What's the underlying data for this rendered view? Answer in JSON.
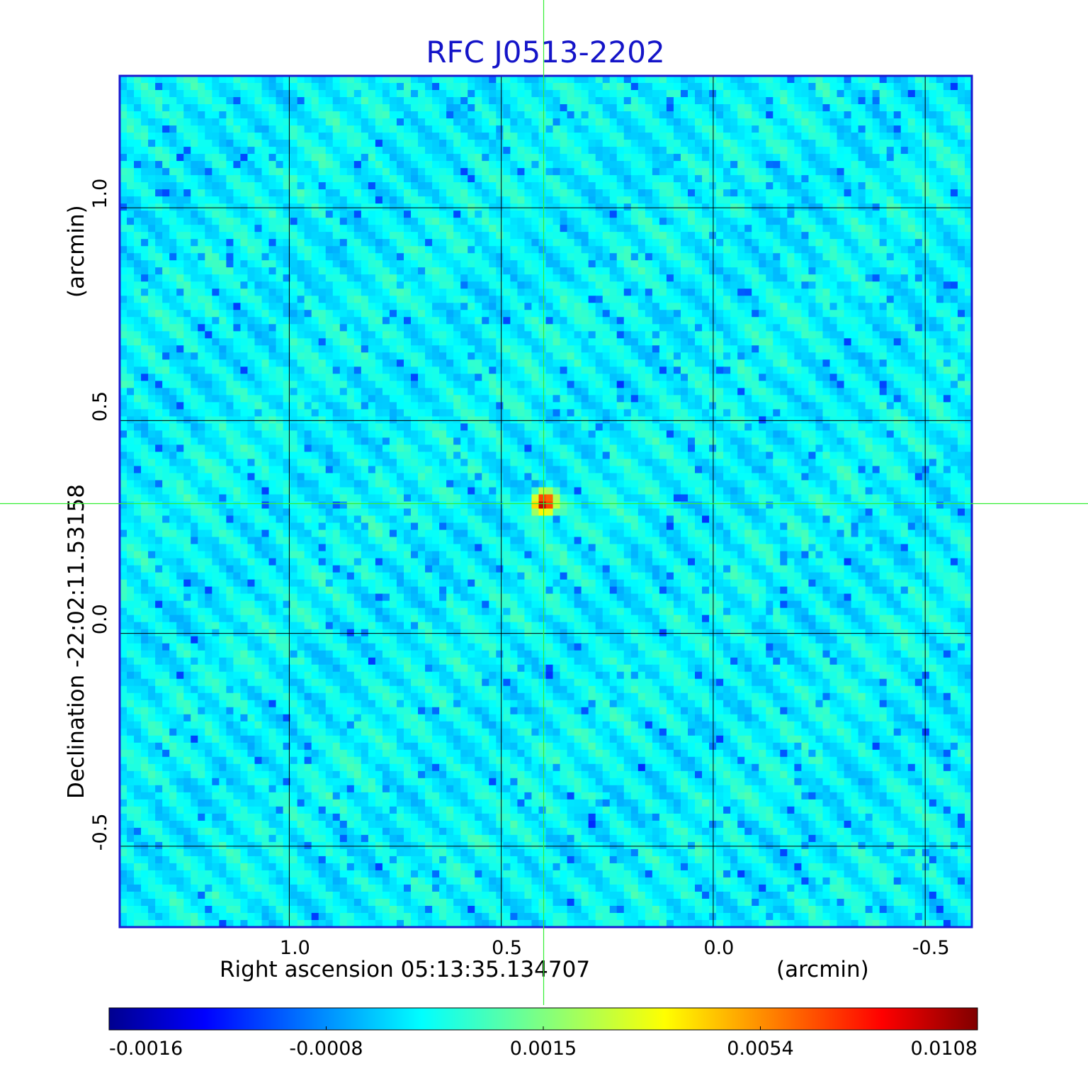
{
  "chart_data": {
    "type": "heatmap",
    "title": "RFC J0513-2202",
    "xlabel": "Right ascension  05:13:35.134707",
    "xunit": "(arcmin)",
    "ylabel": "Declination  -22:02:11.53158",
    "yunit": "(arcmin)",
    "x_ticks": [
      "1.0",
      "0.5",
      "0.0",
      "-0.5"
    ],
    "y_ticks": [
      "1.0",
      "0.5",
      "0.0",
      "-0.5"
    ],
    "x_tick_values": [
      1.0,
      0.5,
      0.0,
      -0.5
    ],
    "y_tick_values": [
      1.0,
      0.5,
      0.0,
      -0.5
    ],
    "xlim": [
      1.4,
      -0.61
    ],
    "ylim": [
      -0.69,
      1.31
    ],
    "crosshair": [
      0.4,
      0.305
    ],
    "peak": [
      0.4,
      0.305
    ],
    "grid": true,
    "colorbar": {
      "colormap": "jet",
      "ticks": [
        "-0.0016",
        "-0.0008",
        "0.0015",
        "0.0054",
        "0.0108"
      ],
      "tick_values": [
        -0.0016,
        -0.0008,
        0.0015,
        0.0054,
        0.0108
      ],
      "orientation": "horizontal",
      "placement": "bottom"
    },
    "colors": {
      "title": "#1414c8",
      "frame": "#1a1ad0",
      "crosshair": "#33ee33",
      "grid": "#000000"
    }
  }
}
